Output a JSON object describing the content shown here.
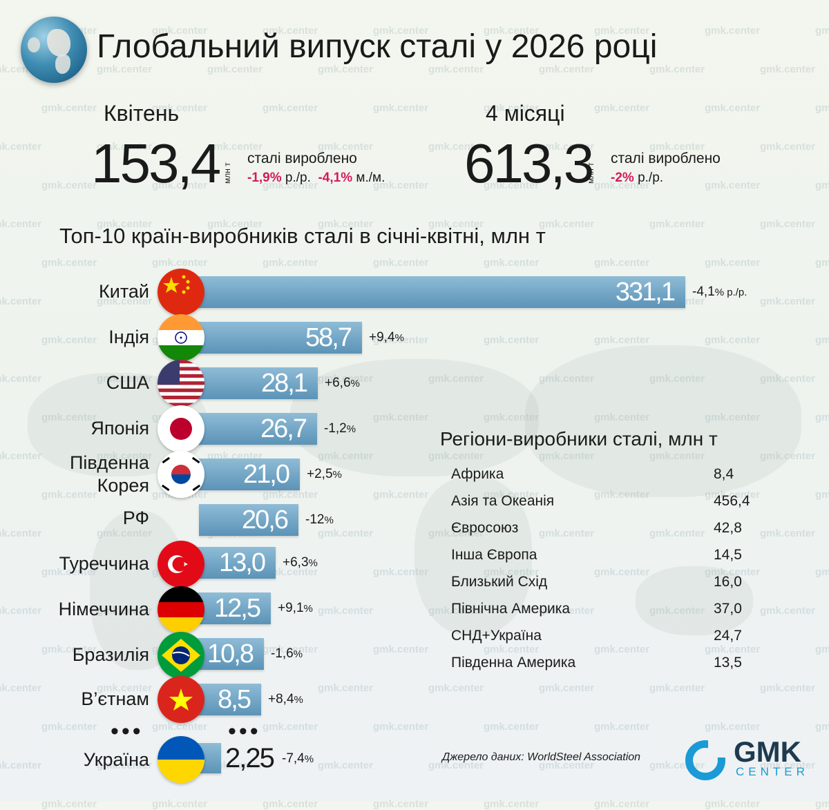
{
  "title": "Глобальний випуск сталі у 2026 році",
  "watermark": "gmk.center",
  "summary": {
    "month": {
      "label": "Квітень",
      "value": "153,4",
      "unit": "млн т",
      "produced": "сталі вироблено",
      "yoy": "-1,9%",
      "yoy_suffix": "р./р.",
      "mom": "-4,1%",
      "mom_suffix": "м./м."
    },
    "ytd": {
      "label": "4 місяці",
      "value": "613,3",
      "unit": "млн т",
      "produced": "сталі вироблено",
      "yoy": "-2%",
      "yoy_suffix": "р./р."
    }
  },
  "chart_data": {
    "type": "bar",
    "title": "Топ-10 країн-виробників сталі в січні-квітні, млн т",
    "categories": [
      "Китай",
      "Індія",
      "США",
      "Японія",
      "Південна Корея",
      "РФ",
      "Туреччина",
      "Німеччина",
      "Бразилія",
      "В'єтнам",
      "Україна"
    ],
    "values": [
      331.1,
      58.7,
      28.1,
      26.7,
      21.0,
      20.6,
      13.0,
      12.5,
      10.8,
      8.5,
      2.25
    ],
    "labels": [
      "331,1",
      "58,7",
      "28,1",
      "26,7",
      "21,0",
      "20,6",
      "13,0",
      "12,5",
      "10,8",
      "8,5",
      "2,25"
    ],
    "changes": [
      "-4,1",
      "+9,4",
      "+6,6",
      "-1,2",
      "+2,5",
      "-12",
      "+6,3",
      "+9,1",
      "-1,6",
      "+8,4",
      "-7,4"
    ],
    "change_suffix_first": "% р./р.",
    "change_suffix": "%"
  },
  "countries": {
    "china": "Китай",
    "india": "Індія",
    "usa": "США",
    "japan": "Японія",
    "korea_line1": "Південна",
    "korea_line2": "Корея",
    "russia": "РФ",
    "turkey": "Туреччина",
    "germany": "Німеччина",
    "brazil": "Бразилія",
    "vietnam": "В’єтнам",
    "ukraine": "Україна"
  },
  "ellipsis": "•••",
  "regions": {
    "title": "Регіони-виробники сталі, млн т",
    "items": [
      {
        "name": "Африка",
        "value": "8,4"
      },
      {
        "name": "Азія та Океанія",
        "value": "456,4"
      },
      {
        "name": "Євросоюз",
        "value": "42,8"
      },
      {
        "name": "Інша Європа",
        "value": "14,5"
      },
      {
        "name": "Близький Схід",
        "value": "16,0"
      },
      {
        "name": "Північна Америка",
        "value": "37,0"
      },
      {
        "name": "СНД+Україна",
        "value": "24,7"
      },
      {
        "name": "Південна Америка",
        "value": "13,5"
      }
    ]
  },
  "source": "Джерело даних: WorldSteel Association",
  "logo": {
    "line1": "GMK",
    "line2": "CENTER"
  },
  "colors": {
    "bar": "#6aa1c3",
    "negative": "#d41a5c",
    "logo_blue": "#1a9ad6",
    "logo_dark": "#1f3a4e"
  }
}
